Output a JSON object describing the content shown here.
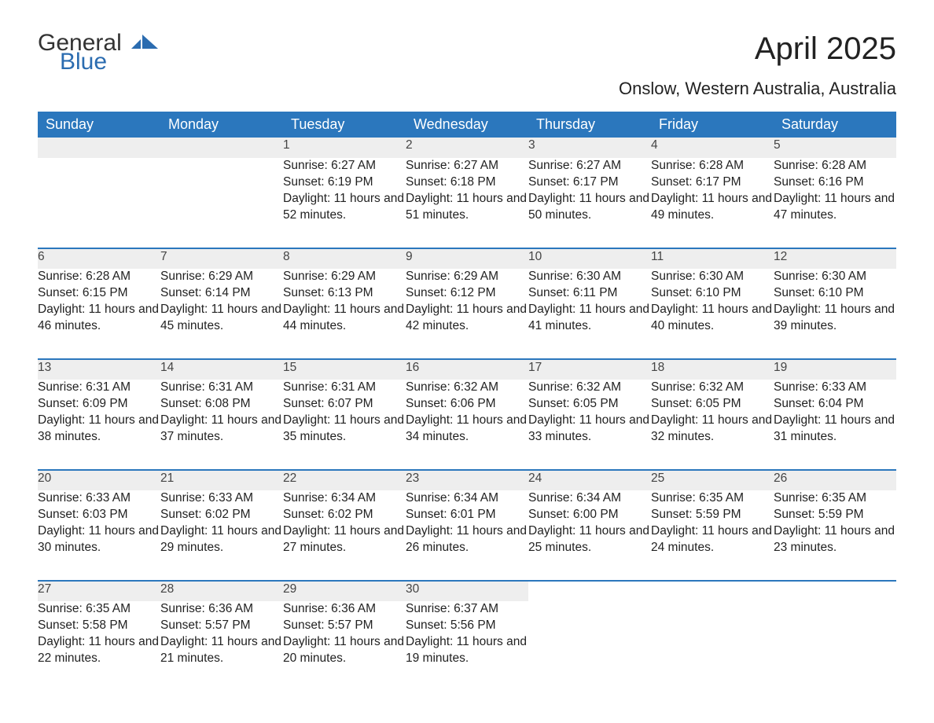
{
  "brand": {
    "word1": "General",
    "word2": "Blue"
  },
  "title": "April 2025",
  "location": "Onslow, Western Australia, Australia",
  "colors": {
    "header_bg": "#2b77bd",
    "header_text": "#ffffff",
    "daynum_bg": "#eeeeee",
    "week_border": "#2b77bd",
    "brand_blue": "#2b6cb0",
    "body_text": "#222222",
    "page_bg": "#ffffff"
  },
  "typography": {
    "title_fontsize": 40,
    "subtitle_fontsize": 22,
    "header_fontsize": 18,
    "daynum_fontsize": 17,
    "detail_fontsize": 15.5,
    "font_family": "Arial"
  },
  "calendar": {
    "type": "table",
    "columns": [
      "Sunday",
      "Monday",
      "Tuesday",
      "Wednesday",
      "Thursday",
      "Friday",
      "Saturday"
    ],
    "first_day_column_index": 2,
    "days_in_month": 30,
    "weeks": [
      [
        null,
        null,
        {
          "n": 1,
          "sunrise": "6:27 AM",
          "sunset": "6:19 PM",
          "daylight": "11 hours and 52 minutes."
        },
        {
          "n": 2,
          "sunrise": "6:27 AM",
          "sunset": "6:18 PM",
          "daylight": "11 hours and 51 minutes."
        },
        {
          "n": 3,
          "sunrise": "6:27 AM",
          "sunset": "6:17 PM",
          "daylight": "11 hours and 50 minutes."
        },
        {
          "n": 4,
          "sunrise": "6:28 AM",
          "sunset": "6:17 PM",
          "daylight": "11 hours and 49 minutes."
        },
        {
          "n": 5,
          "sunrise": "6:28 AM",
          "sunset": "6:16 PM",
          "daylight": "11 hours and 47 minutes."
        }
      ],
      [
        {
          "n": 6,
          "sunrise": "6:28 AM",
          "sunset": "6:15 PM",
          "daylight": "11 hours and 46 minutes."
        },
        {
          "n": 7,
          "sunrise": "6:29 AM",
          "sunset": "6:14 PM",
          "daylight": "11 hours and 45 minutes."
        },
        {
          "n": 8,
          "sunrise": "6:29 AM",
          "sunset": "6:13 PM",
          "daylight": "11 hours and 44 minutes."
        },
        {
          "n": 9,
          "sunrise": "6:29 AM",
          "sunset": "6:12 PM",
          "daylight": "11 hours and 42 minutes."
        },
        {
          "n": 10,
          "sunrise": "6:30 AM",
          "sunset": "6:11 PM",
          "daylight": "11 hours and 41 minutes."
        },
        {
          "n": 11,
          "sunrise": "6:30 AM",
          "sunset": "6:10 PM",
          "daylight": "11 hours and 40 minutes."
        },
        {
          "n": 12,
          "sunrise": "6:30 AM",
          "sunset": "6:10 PM",
          "daylight": "11 hours and 39 minutes."
        }
      ],
      [
        {
          "n": 13,
          "sunrise": "6:31 AM",
          "sunset": "6:09 PM",
          "daylight": "11 hours and 38 minutes."
        },
        {
          "n": 14,
          "sunrise": "6:31 AM",
          "sunset": "6:08 PM",
          "daylight": "11 hours and 37 minutes."
        },
        {
          "n": 15,
          "sunrise": "6:31 AM",
          "sunset": "6:07 PM",
          "daylight": "11 hours and 35 minutes."
        },
        {
          "n": 16,
          "sunrise": "6:32 AM",
          "sunset": "6:06 PM",
          "daylight": "11 hours and 34 minutes."
        },
        {
          "n": 17,
          "sunrise": "6:32 AM",
          "sunset": "6:05 PM",
          "daylight": "11 hours and 33 minutes."
        },
        {
          "n": 18,
          "sunrise": "6:32 AM",
          "sunset": "6:05 PM",
          "daylight": "11 hours and 32 minutes."
        },
        {
          "n": 19,
          "sunrise": "6:33 AM",
          "sunset": "6:04 PM",
          "daylight": "11 hours and 31 minutes."
        }
      ],
      [
        {
          "n": 20,
          "sunrise": "6:33 AM",
          "sunset": "6:03 PM",
          "daylight": "11 hours and 30 minutes."
        },
        {
          "n": 21,
          "sunrise": "6:33 AM",
          "sunset": "6:02 PM",
          "daylight": "11 hours and 29 minutes."
        },
        {
          "n": 22,
          "sunrise": "6:34 AM",
          "sunset": "6:02 PM",
          "daylight": "11 hours and 27 minutes."
        },
        {
          "n": 23,
          "sunrise": "6:34 AM",
          "sunset": "6:01 PM",
          "daylight": "11 hours and 26 minutes."
        },
        {
          "n": 24,
          "sunrise": "6:34 AM",
          "sunset": "6:00 PM",
          "daylight": "11 hours and 25 minutes."
        },
        {
          "n": 25,
          "sunrise": "6:35 AM",
          "sunset": "5:59 PM",
          "daylight": "11 hours and 24 minutes."
        },
        {
          "n": 26,
          "sunrise": "6:35 AM",
          "sunset": "5:59 PM",
          "daylight": "11 hours and 23 minutes."
        }
      ],
      [
        {
          "n": 27,
          "sunrise": "6:35 AM",
          "sunset": "5:58 PM",
          "daylight": "11 hours and 22 minutes."
        },
        {
          "n": 28,
          "sunrise": "6:36 AM",
          "sunset": "5:57 PM",
          "daylight": "11 hours and 21 minutes."
        },
        {
          "n": 29,
          "sunrise": "6:36 AM",
          "sunset": "5:57 PM",
          "daylight": "11 hours and 20 minutes."
        },
        {
          "n": 30,
          "sunrise": "6:37 AM",
          "sunset": "5:56 PM",
          "daylight": "11 hours and 19 minutes."
        },
        null,
        null,
        null
      ]
    ],
    "labels": {
      "sunrise": "Sunrise:",
      "sunset": "Sunset:",
      "daylight": "Daylight:"
    }
  }
}
